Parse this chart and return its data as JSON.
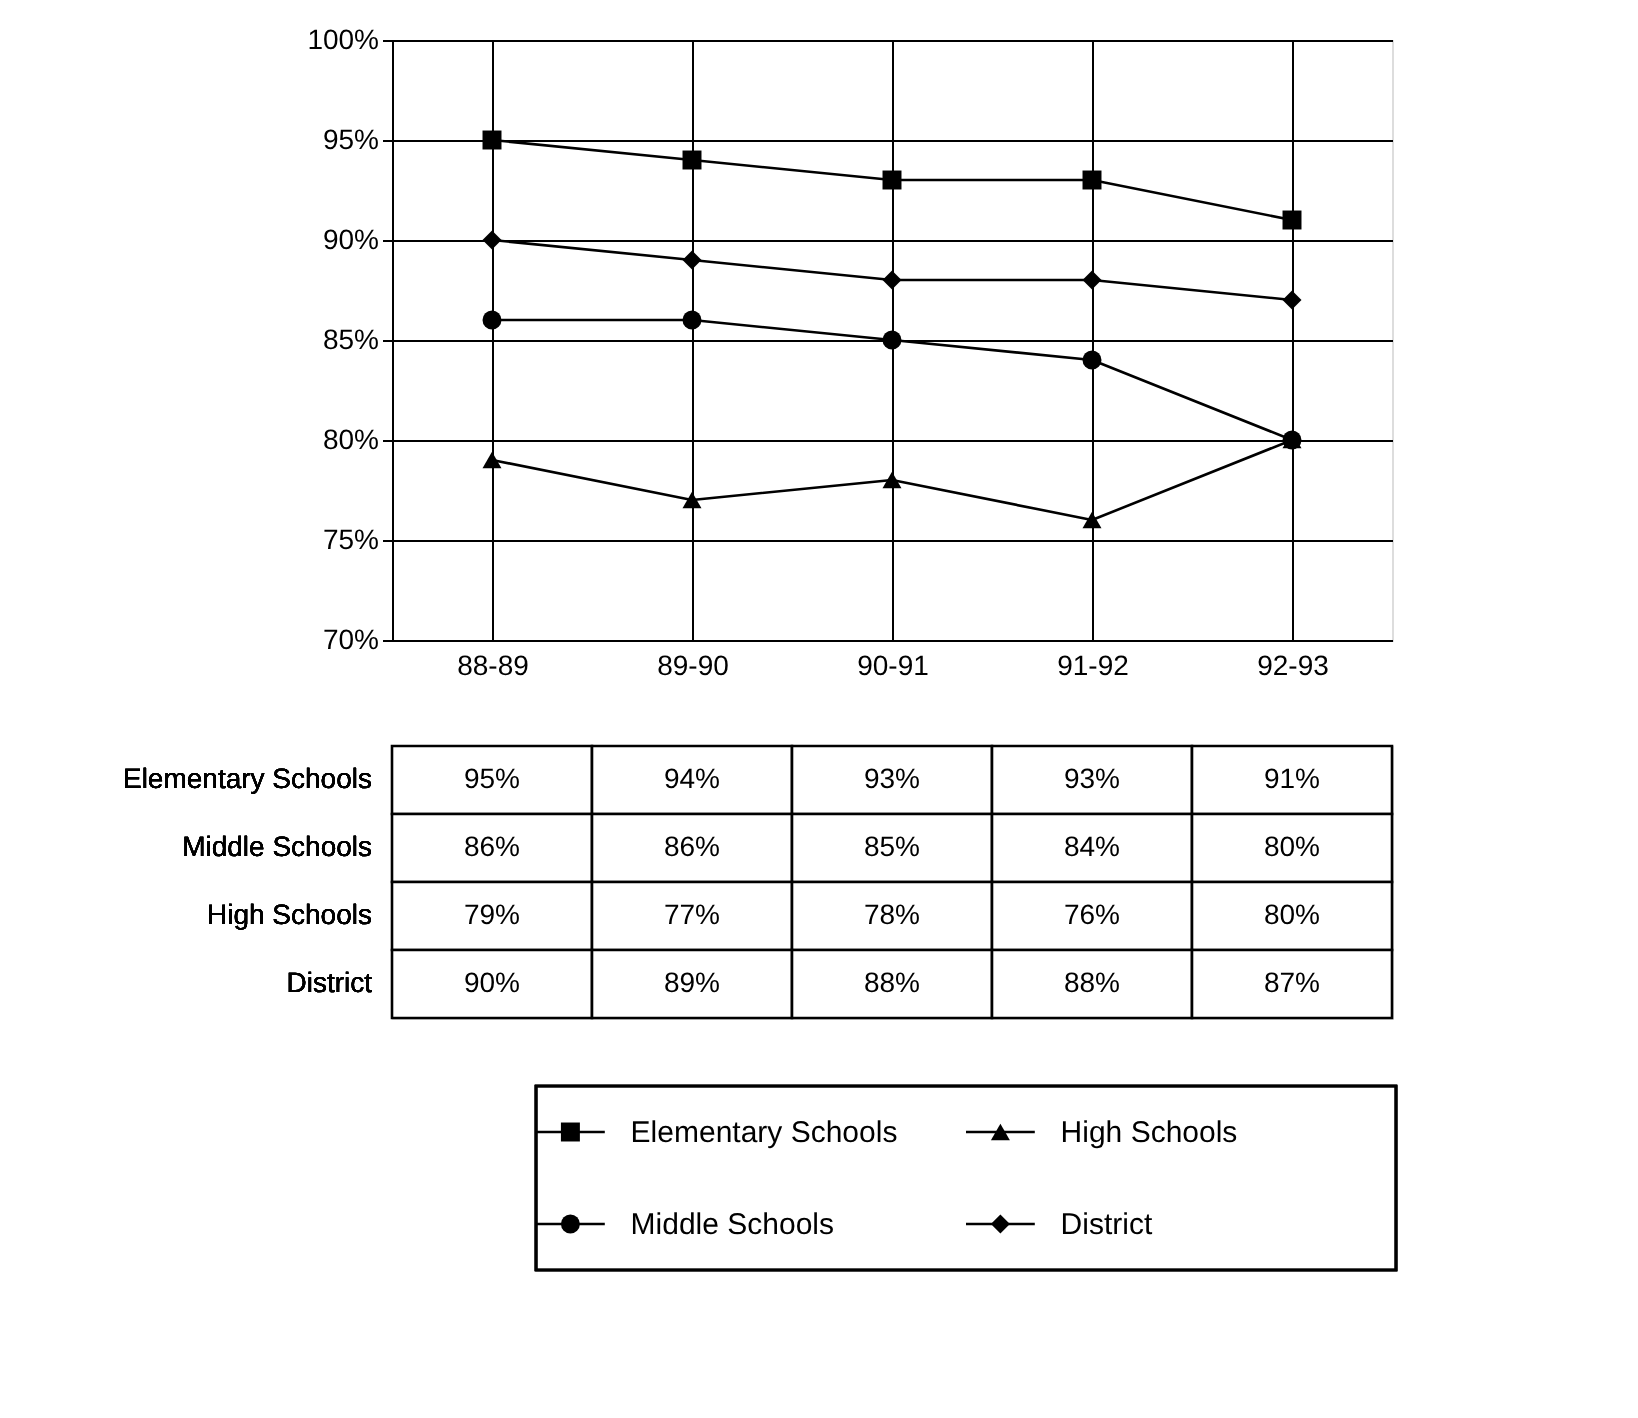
{
  "chart_data": {
    "type": "line",
    "categories": [
      "88-89",
      "89-90",
      "90-91",
      "91-92",
      "92-93"
    ],
    "series": [
      {
        "name": "Elementary Schools",
        "color": "#000000",
        "marker": "square",
        "values": [
          95,
          94,
          93,
          93,
          91
        ],
        "value_labels": [
          "95%",
          "94%",
          "93%",
          "93%",
          "91%"
        ]
      },
      {
        "name": "Middle Schools",
        "color": "#000000",
        "marker": "circle",
        "values": [
          86,
          86,
          85,
          84,
          80
        ],
        "value_labels": [
          "86%",
          "86%",
          "85%",
          "84%",
          "80%"
        ]
      },
      {
        "name": "High Schools",
        "color": "#000000",
        "marker": "triangle",
        "values": [
          79,
          77,
          78,
          76,
          80
        ],
        "value_labels": [
          "79%",
          "77%",
          "78%",
          "76%",
          "80%"
        ]
      },
      {
        "name": "District",
        "color": "#000000",
        "marker": "diamond",
        "values": [
          90,
          89,
          88,
          88,
          87
        ],
        "value_labels": [
          "90%",
          "89%",
          "88%",
          "88%",
          "87%"
        ]
      }
    ],
    "ylim": [
      70,
      100
    ],
    "yticks": [
      {
        "value": 70,
        "label": "70%"
      },
      {
        "value": 75,
        "label": "75%"
      },
      {
        "value": 80,
        "label": "80%"
      },
      {
        "value": 85,
        "label": "85%"
      },
      {
        "value": 90,
        "label": "90%"
      },
      {
        "value": 95,
        "label": "95%"
      },
      {
        "value": 100,
        "label": "100%"
      }
    ],
    "grid": true,
    "line_style": "solid",
    "legend": "bottom"
  }
}
